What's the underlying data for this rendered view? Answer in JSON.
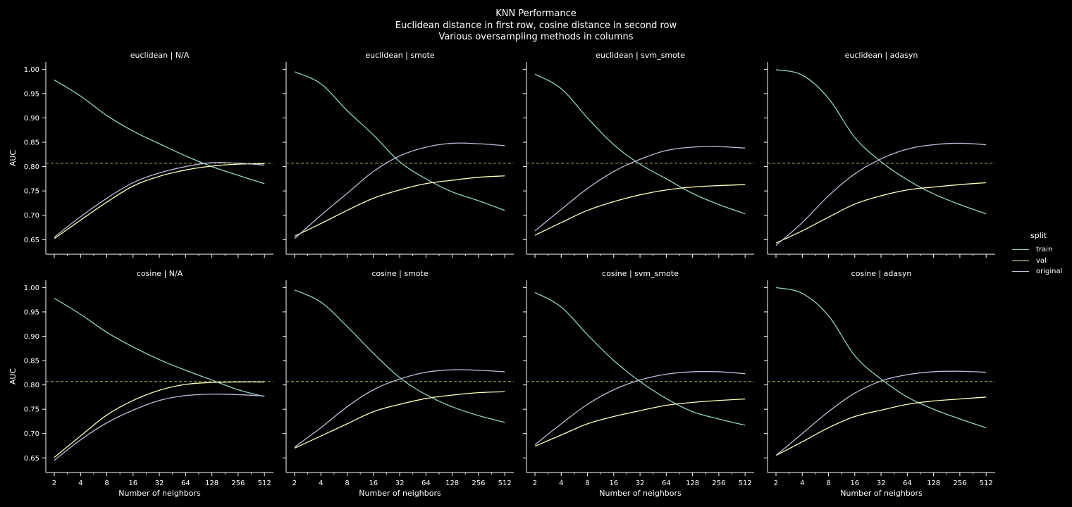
{
  "title": {
    "line1": "KNN Performance",
    "line2": "Euclidean distance in first row, cosine distance in second row",
    "line3": "Various oversampling methods in columns"
  },
  "legend": {
    "title": "split",
    "items": [
      {
        "label": "train",
        "color": "#8dd3c7"
      },
      {
        "label": "val",
        "color": "#feffb3"
      },
      {
        "label": "original",
        "color": "#bfbbd9"
      }
    ]
  },
  "reference_line": {
    "value": 0.807,
    "color": "#8a9a3a"
  },
  "chart_data": {
    "type": "line",
    "xlabel": "Number of neighbors",
    "ylabel": "AUC",
    "x_scale": "log2",
    "x_ticks": [
      2,
      4,
      8,
      16,
      32,
      64,
      128,
      256,
      512
    ],
    "y_ticks": [
      0.65,
      0.7,
      0.75,
      0.8,
      0.85,
      0.9,
      0.95,
      1.0
    ],
    "ylim": [
      0.62,
      1.015
    ],
    "xlim": [
      1.6,
      650
    ],
    "x": [
      2,
      4,
      8,
      16,
      32,
      64,
      128,
      256,
      512
    ],
    "panels": [
      {
        "title": "euclidean | N/A",
        "series": [
          {
            "name": "train",
            "values": [
              0.978,
              0.945,
              0.905,
              0.873,
              0.847,
              0.822,
              0.8,
              0.782,
              0.765
            ]
          },
          {
            "name": "val",
            "values": [
              0.652,
              0.69,
              0.727,
              0.76,
              0.78,
              0.793,
              0.801,
              0.805,
              0.806
            ]
          },
          {
            "name": "original",
            "values": [
              0.655,
              0.697,
              0.735,
              0.767,
              0.787,
              0.8,
              0.808,
              0.807,
              0.803
            ]
          }
        ]
      },
      {
        "title": "euclidean | smote",
        "series": [
          {
            "name": "train",
            "values": [
              0.995,
              0.97,
              0.915,
              0.865,
              0.81,
              0.775,
              0.748,
              0.73,
              0.71
            ]
          },
          {
            "name": "val",
            "values": [
              0.657,
              0.683,
              0.71,
              0.735,
              0.752,
              0.765,
              0.772,
              0.778,
              0.781
            ]
          },
          {
            "name": "original",
            "values": [
              0.652,
              0.7,
              0.745,
              0.79,
              0.822,
              0.84,
              0.848,
              0.847,
              0.843
            ]
          }
        ]
      },
      {
        "title": "euclidean | svm_smote",
        "series": [
          {
            "name": "train",
            "values": [
              0.99,
              0.96,
              0.9,
              0.845,
              0.805,
              0.775,
              0.745,
              0.722,
              0.703
            ]
          },
          {
            "name": "val",
            "values": [
              0.659,
              0.685,
              0.71,
              0.728,
              0.742,
              0.752,
              0.758,
              0.761,
              0.763
            ]
          },
          {
            "name": "original",
            "values": [
              0.668,
              0.712,
              0.755,
              0.79,
              0.815,
              0.833,
              0.84,
              0.841,
              0.838
            ]
          }
        ]
      },
      {
        "title": "euclidean | adasyn",
        "series": [
          {
            "name": "train",
            "values": [
              0.999,
              0.988,
              0.94,
              0.86,
              0.81,
              0.773,
              0.744,
              0.722,
              0.703
            ]
          },
          {
            "name": "val",
            "values": [
              0.643,
              0.668,
              0.696,
              0.723,
              0.74,
              0.752,
              0.758,
              0.763,
              0.767
            ]
          },
          {
            "name": "original",
            "values": [
              0.638,
              0.685,
              0.74,
              0.785,
              0.816,
              0.836,
              0.845,
              0.848,
              0.845
            ]
          }
        ]
      },
      {
        "title": "cosine | N/A",
        "series": [
          {
            "name": "train",
            "values": [
              0.978,
              0.945,
              0.908,
              0.878,
              0.852,
              0.83,
              0.81,
              0.79,
              0.776
            ]
          },
          {
            "name": "val",
            "values": [
              0.651,
              0.695,
              0.738,
              0.768,
              0.789,
              0.801,
              0.805,
              0.806,
              0.806
            ]
          },
          {
            "name": "original",
            "values": [
              0.645,
              0.687,
              0.722,
              0.748,
              0.768,
              0.778,
              0.781,
              0.78,
              0.777
            ]
          }
        ]
      },
      {
        "title": "cosine | smote",
        "series": [
          {
            "name": "train",
            "values": [
              0.995,
              0.97,
              0.92,
              0.865,
              0.815,
              0.78,
              0.755,
              0.737,
              0.723
            ]
          },
          {
            "name": "val",
            "values": [
              0.67,
              0.695,
              0.72,
              0.745,
              0.76,
              0.772,
              0.779,
              0.784,
              0.786
            ]
          },
          {
            "name": "original",
            "values": [
              0.672,
              0.712,
              0.755,
              0.79,
              0.812,
              0.826,
              0.831,
              0.83,
              0.827
            ]
          }
        ]
      },
      {
        "title": "cosine | svm_smote",
        "series": [
          {
            "name": "train",
            "values": [
              0.99,
              0.96,
              0.903,
              0.85,
              0.807,
              0.772,
              0.745,
              0.73,
              0.717
            ]
          },
          {
            "name": "val",
            "values": [
              0.674,
              0.697,
              0.72,
              0.735,
              0.747,
              0.758,
              0.764,
              0.768,
              0.771
            ]
          },
          {
            "name": "original",
            "values": [
              0.677,
              0.72,
              0.76,
              0.79,
              0.81,
              0.822,
              0.827,
              0.827,
              0.823
            ]
          }
        ]
      },
      {
        "title": "cosine | adasyn",
        "series": [
          {
            "name": "train",
            "values": [
              1.0,
              0.988,
              0.942,
              0.86,
              0.812,
              0.775,
              0.75,
              0.73,
              0.712
            ]
          },
          {
            "name": "val",
            "values": [
              0.655,
              0.683,
              0.712,
              0.735,
              0.748,
              0.76,
              0.767,
              0.771,
              0.775
            ]
          },
          {
            "name": "original",
            "values": [
              0.655,
              0.7,
              0.745,
              0.783,
              0.808,
              0.821,
              0.827,
              0.828,
              0.826
            ]
          }
        ]
      }
    ]
  }
}
